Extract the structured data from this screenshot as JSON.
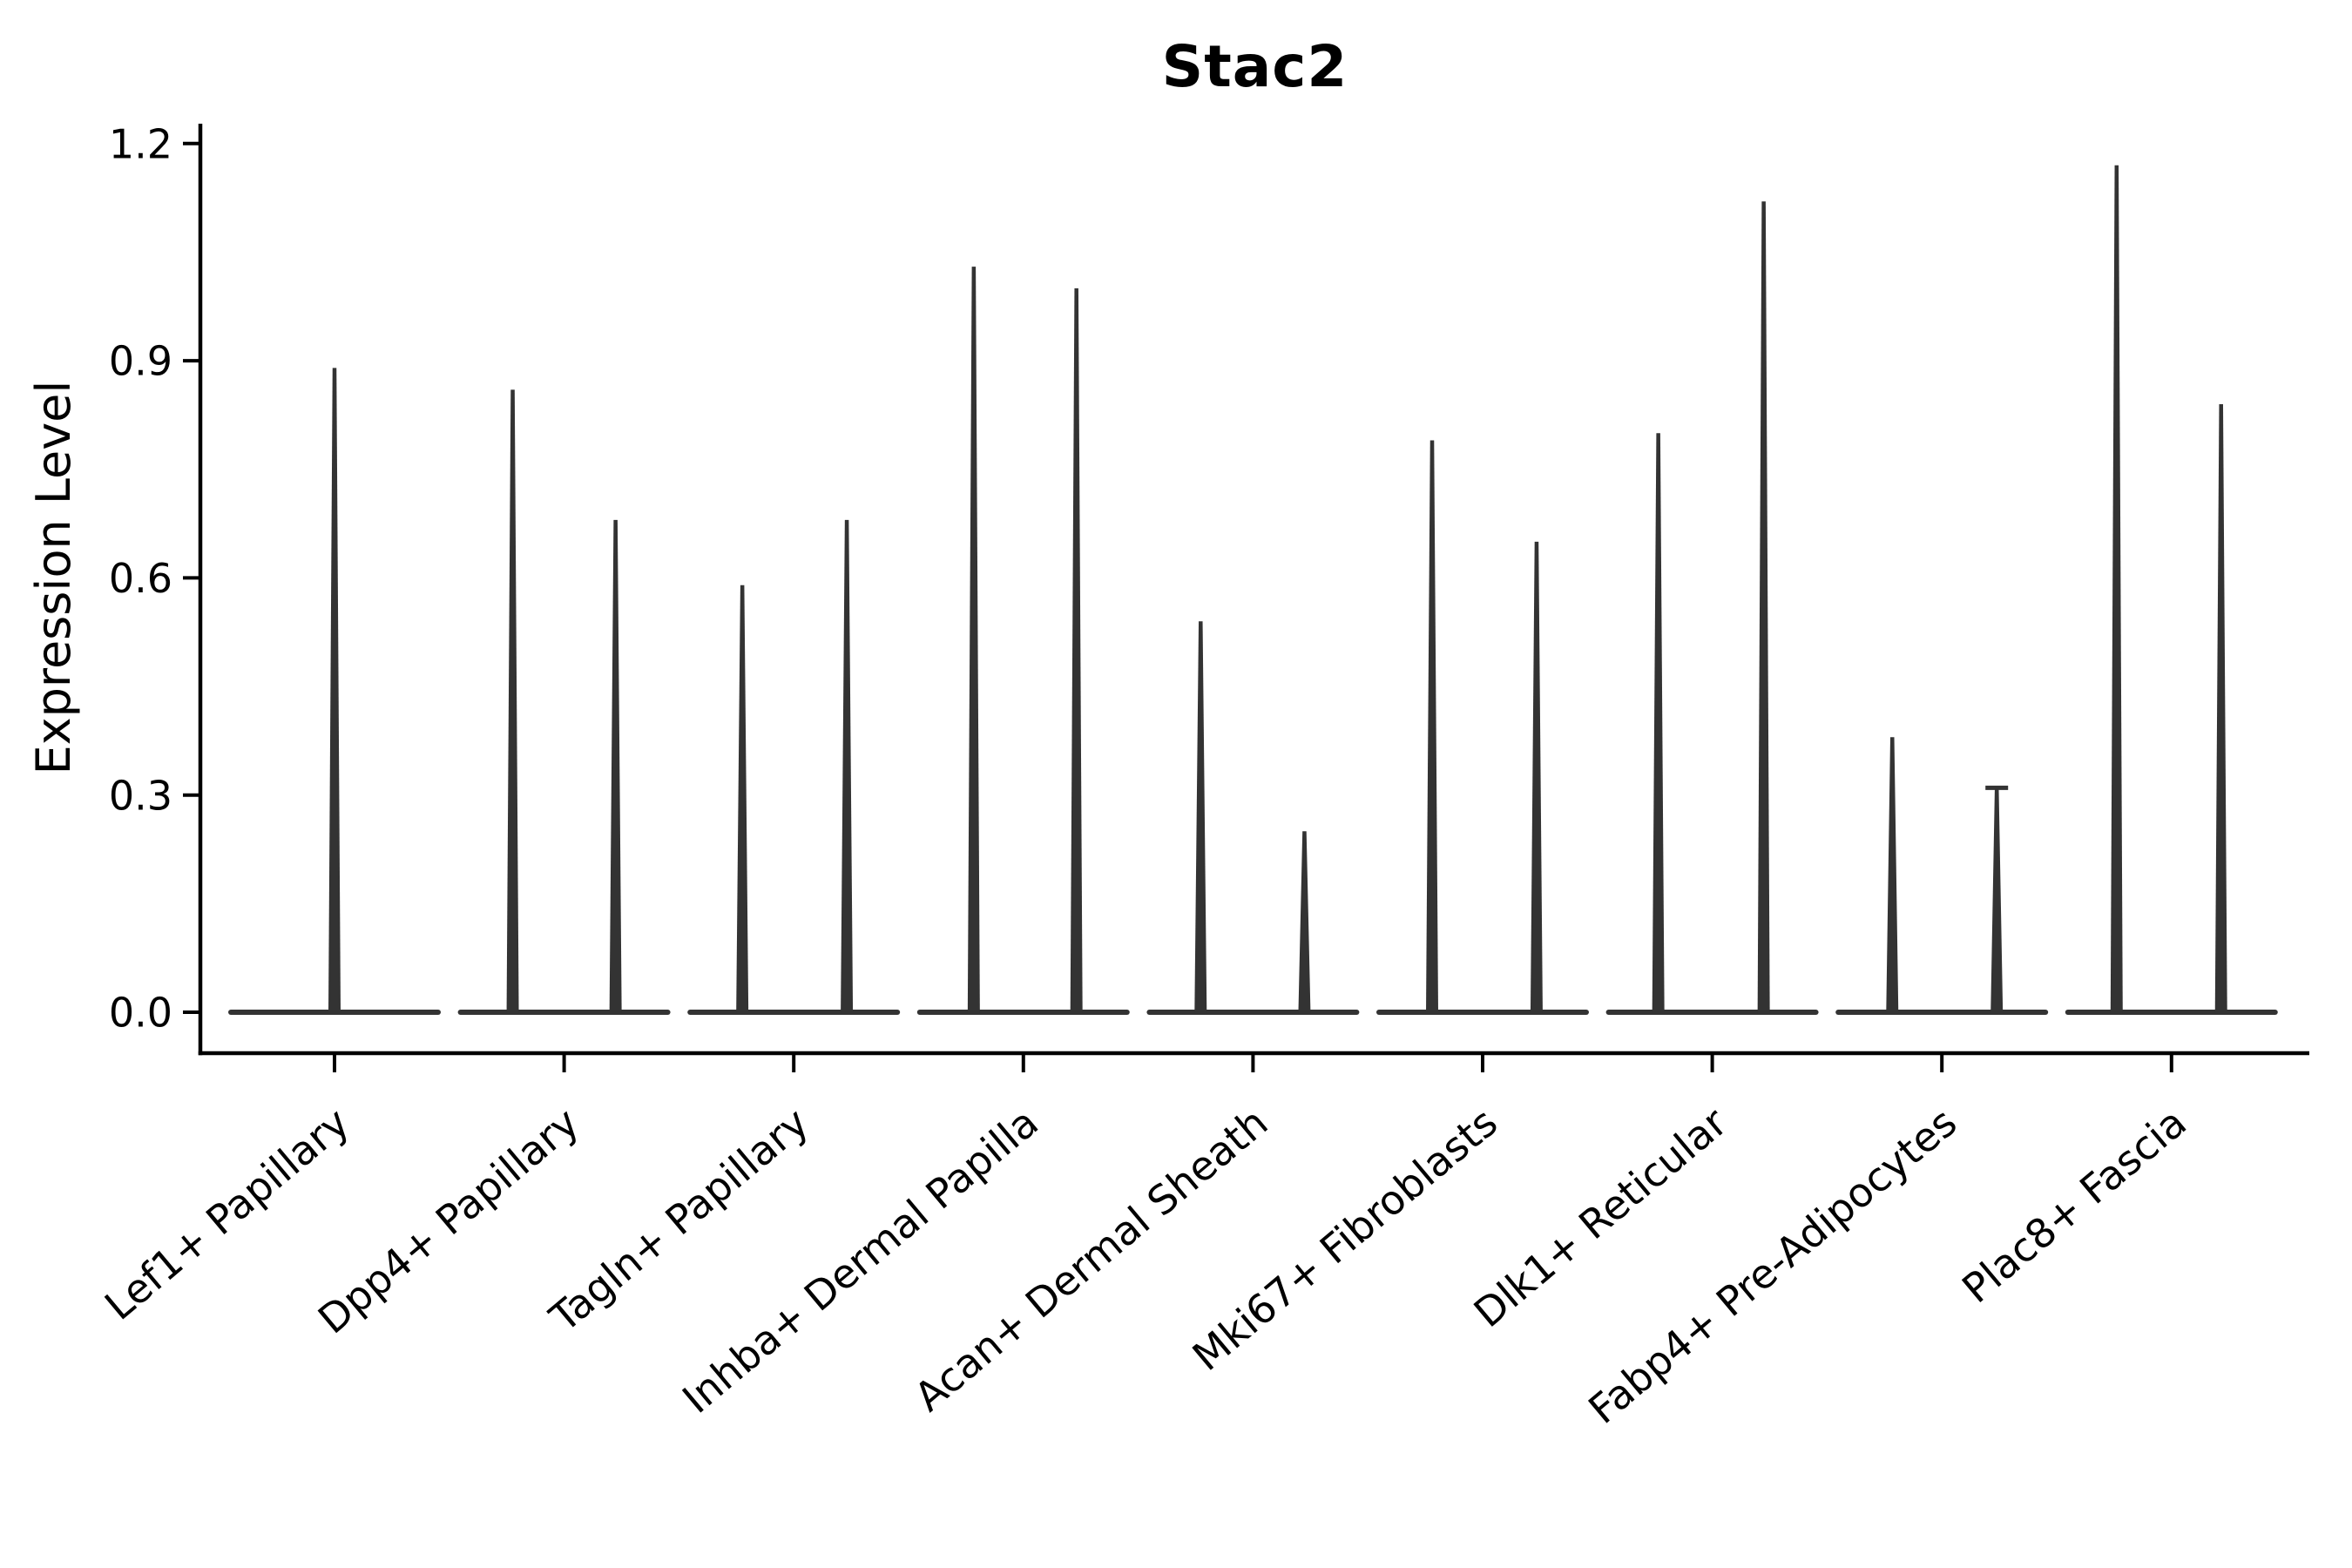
{
  "figure": {
    "title": "Stac2",
    "background_color": "#ffffff"
  },
  "chart_data": {
    "type": "violin",
    "title": "Stac2",
    "xlabel": "",
    "ylabel": "Expression Level",
    "ylim": [
      0,
      1.23
    ],
    "yticks": [
      0.0,
      0.3,
      0.6,
      0.9,
      1.2
    ],
    "grid": false,
    "legend": "none",
    "x_label_rotation_deg": 40,
    "colors": {
      "violin_line": "#333333",
      "axis_line": "#000000",
      "text": "#000000",
      "background": "#ffffff"
    },
    "categories": [
      "Lef1+ Papillary",
      "Dpp4+ Papillary",
      "Tagln+ Papillary",
      "Inhba+ Dermal Papilla",
      "Acan+ Dermal Sheath",
      "Mki67+ Fibroblasts",
      "Dlk1+ Reticular",
      "Fabp4+ Pre-Adipocytes",
      "Plac8+ Fascia"
    ],
    "series": [
      {
        "name": "Lef1+ Papillary",
        "baseline_value": 0.0,
        "spikes": [
          {
            "offset_frac": 0.0,
            "value": 0.89
          }
        ]
      },
      {
        "name": "Dpp4+ Papillary",
        "baseline_value": 0.0,
        "spikes": [
          {
            "offset_frac": -0.224,
            "value": 0.86
          },
          {
            "offset_frac": 0.224,
            "value": 0.68
          }
        ]
      },
      {
        "name": "Tagln+ Papillary",
        "baseline_value": 0.0,
        "spikes": [
          {
            "offset_frac": -0.224,
            "value": 0.59
          },
          {
            "offset_frac": 0.231,
            "value": 0.68
          }
        ]
      },
      {
        "name": "Inhba+ Dermal Papilla",
        "baseline_value": 0.0,
        "spikes": [
          {
            "offset_frac": -0.216,
            "value": 1.03
          },
          {
            "offset_frac": 0.231,
            "value": 1.0
          }
        ]
      },
      {
        "name": "Acan+ Dermal Sheath",
        "baseline_value": 0.0,
        "spikes": [
          {
            "offset_frac": -0.228,
            "value": 0.54
          },
          {
            "offset_frac": 0.224,
            "value": 0.25
          }
        ]
      },
      {
        "name": "Mki67+ Fibroblasts",
        "baseline_value": 0.0,
        "spikes": [
          {
            "offset_frac": -0.22,
            "value": 0.79
          },
          {
            "offset_frac": 0.235,
            "value": 0.65
          }
        ]
      },
      {
        "name": "Dlk1+ Reticular",
        "baseline_value": 0.0,
        "spikes": [
          {
            "offset_frac": -0.235,
            "value": 0.8
          },
          {
            "offset_frac": 0.224,
            "value": 1.12
          }
        ]
      },
      {
        "name": "Fabp4+ Pre-Adipocytes",
        "baseline_value": 0.0,
        "spikes": [
          {
            "offset_frac": -0.216,
            "value": 0.38
          },
          {
            "offset_frac": 0.239,
            "value": 0.31,
            "cap": true
          }
        ]
      },
      {
        "name": "Plac8+ Fascia",
        "baseline_value": 0.0,
        "spikes": [
          {
            "offset_frac": -0.239,
            "value": 1.17
          },
          {
            "offset_frac": 0.216,
            "value": 0.84
          }
        ]
      }
    ]
  }
}
